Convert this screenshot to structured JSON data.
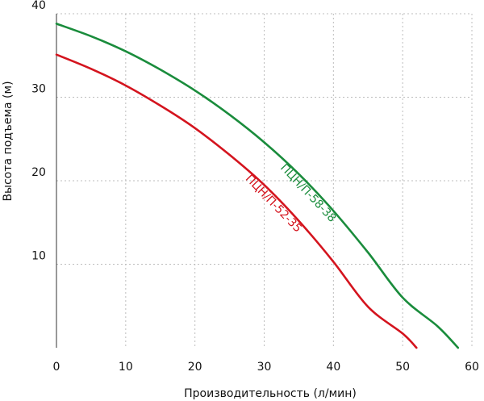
{
  "chart_data": {
    "type": "line",
    "xlabel": "Производительность (л/мин)",
    "ylabel": "Высота подъема (м)",
    "xlim": [
      0,
      60
    ],
    "ylim": [
      0,
      40
    ],
    "x_ticks": [
      "0",
      "10",
      "20",
      "30",
      "40",
      "50",
      "60"
    ],
    "y_ticks": [
      "10",
      "20",
      "30",
      "40"
    ],
    "grid": true,
    "series": [
      {
        "name": "ПЦН/П-58-38",
        "color": "#1a8c3c",
        "x": [
          0,
          5,
          10,
          15,
          20,
          25,
          30,
          35,
          40,
          45,
          50,
          55,
          58
        ],
        "y": [
          38.8,
          37.3,
          35.5,
          33.3,
          30.8,
          27.9,
          24.6,
          20.8,
          16.4,
          11.4,
          6.0,
          2.6,
          0
        ]
      },
      {
        "name": "ПЦН/П-52-35",
        "color": "#d4141e",
        "x": [
          0,
          5,
          10,
          15,
          20,
          25,
          30,
          35,
          40,
          45,
          50,
          52
        ],
        "y": [
          35.1,
          33.4,
          31.4,
          29.0,
          26.3,
          23.1,
          19.5,
          15.2,
          10.3,
          4.9,
          1.7,
          0
        ]
      }
    ]
  }
}
